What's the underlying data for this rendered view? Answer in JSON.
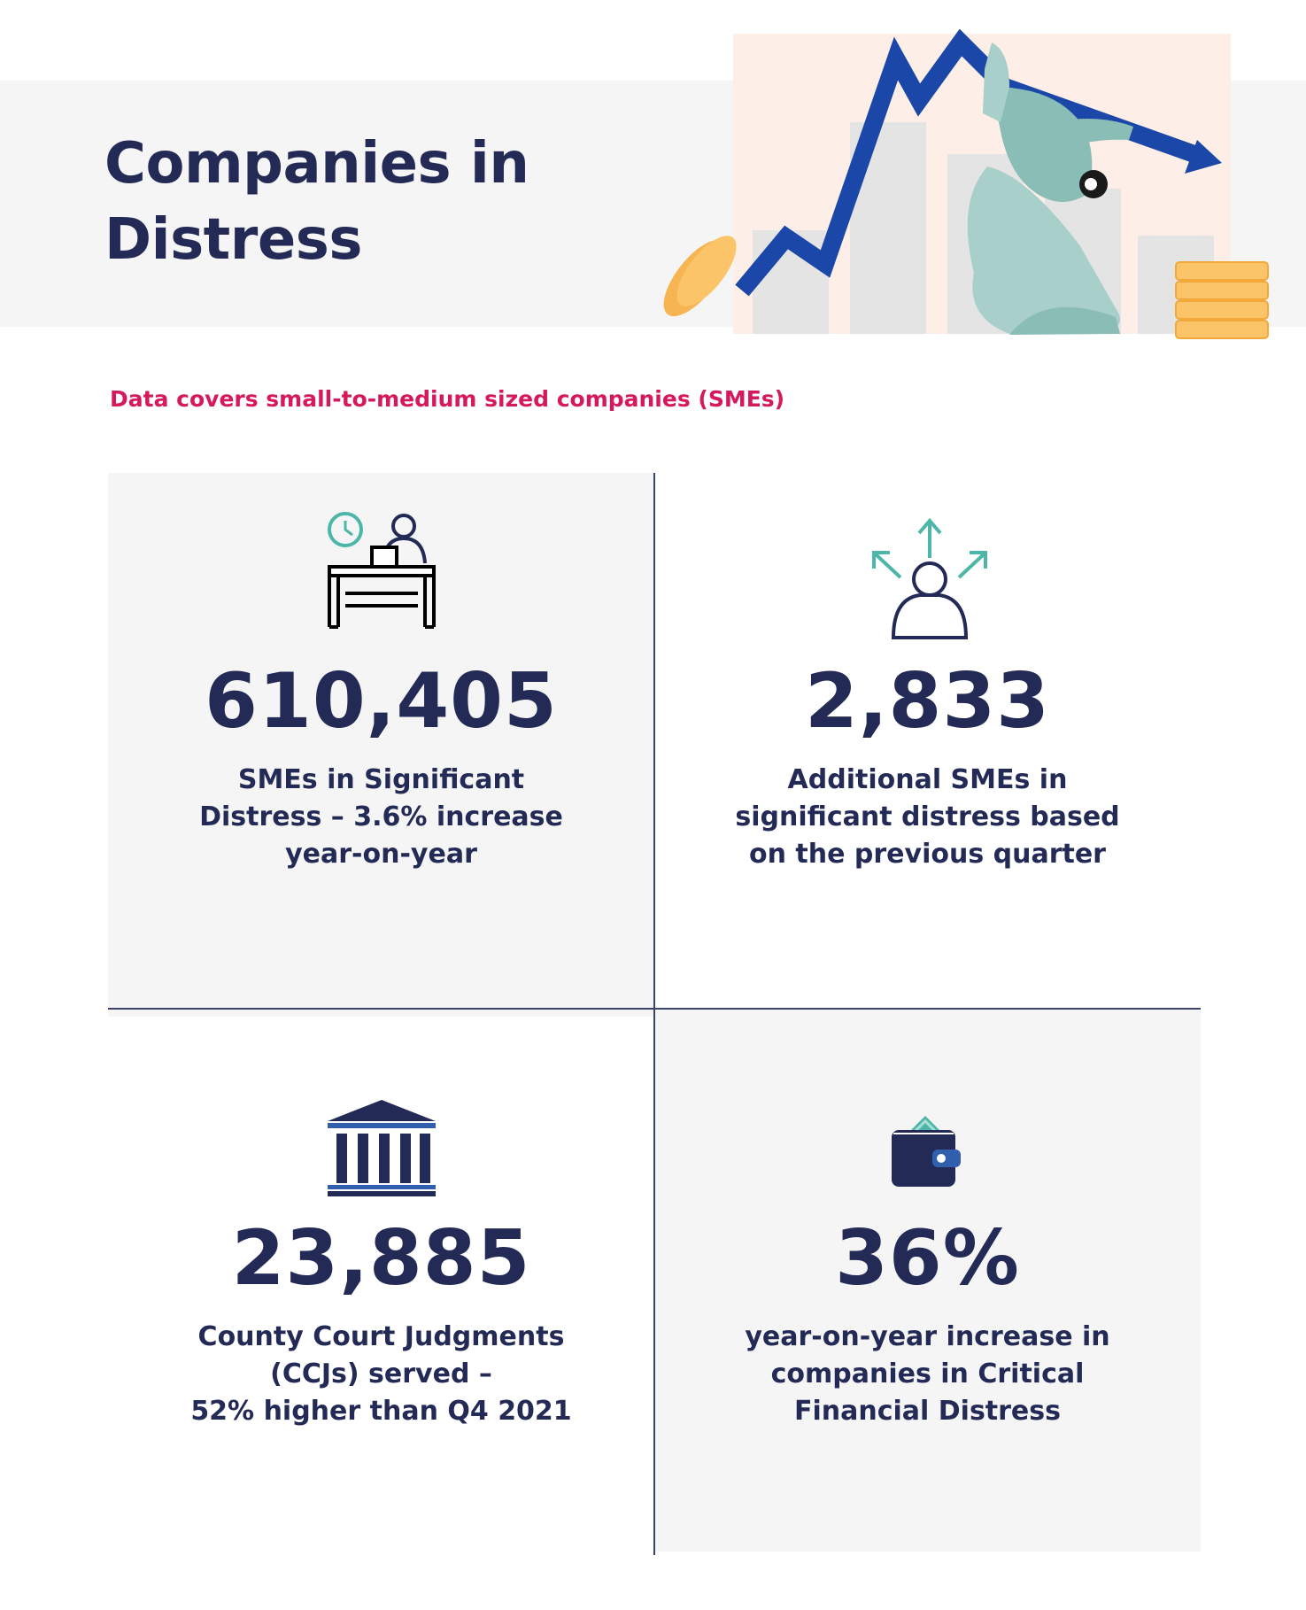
{
  "header": {
    "title_line1": "Companies in",
    "title_line2": "Distress"
  },
  "subtitle": "Data covers small-to-medium sized companies (SMEs)",
  "colors": {
    "navy": "#232a56",
    "accent_pink": "#d6185c",
    "teal": "#4db6a8",
    "blue_arrow": "#1a47a8",
    "coin_gold": "#fbc468",
    "panel_grey": "#f5f5f5",
    "hero_bg": "#fdefe7"
  },
  "stats": [
    {
      "value": "610,405",
      "desc_lines": [
        "SMEs in Significant",
        "Distress –  3.6% increase",
        "year-on-year"
      ],
      "icon": "desk-worker-clock-icon"
    },
    {
      "value": "2,833",
      "desc_lines": [
        "Additional SMEs in",
        "significant distress based",
        "on the previous quarter"
      ],
      "icon": "person-arrows-icon"
    },
    {
      "value": "23,885",
      "desc_lines": [
        "County Court Judgments",
        "(CCJs) served –",
        "52% higher than Q4 2021"
      ],
      "icon": "courthouse-icon"
    },
    {
      "value": "36%",
      "desc_lines": [
        "year-on-year increase in",
        "companies in Critical",
        "Financial Distress"
      ],
      "icon": "wallet-icon"
    }
  ]
}
